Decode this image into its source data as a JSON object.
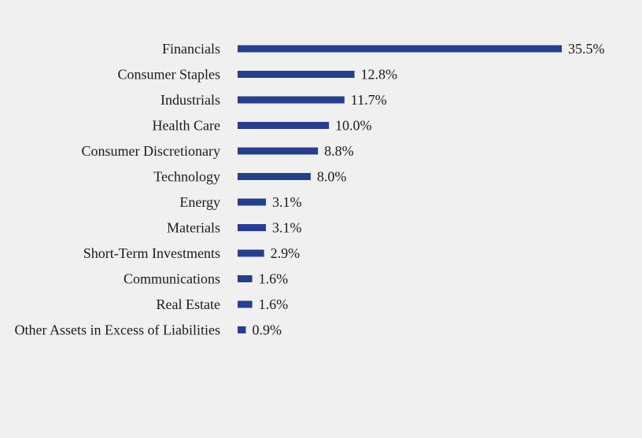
{
  "chart_data": {
    "type": "bar",
    "orientation": "horizontal",
    "categories": [
      "Financials",
      "Consumer Staples",
      "Industrials",
      "Health Care",
      "Consumer Discretionary",
      "Technology",
      "Energy",
      "Materials",
      "Short-Term Investments",
      "Communications",
      "Real Estate",
      "Other Assets in Excess of Liabilities"
    ],
    "values": [
      35.5,
      12.8,
      11.7,
      10.0,
      8.8,
      8.0,
      3.1,
      3.1,
      2.9,
      1.6,
      1.6,
      0.9
    ],
    "value_labels": [
      "35.5%",
      "12.8%",
      "11.7%",
      "10.0%",
      "8.8%",
      "8.0%",
      "3.1%",
      "3.1%",
      "2.9%",
      "1.6%",
      "1.6%",
      "0.9%"
    ],
    "title": "",
    "xlabel": "",
    "ylabel": "",
    "xlim": [
      0,
      35.5
    ],
    "grid": false,
    "legend": "none",
    "bar_color": "#253f8e",
    "background_color": "#f0f0f0"
  }
}
